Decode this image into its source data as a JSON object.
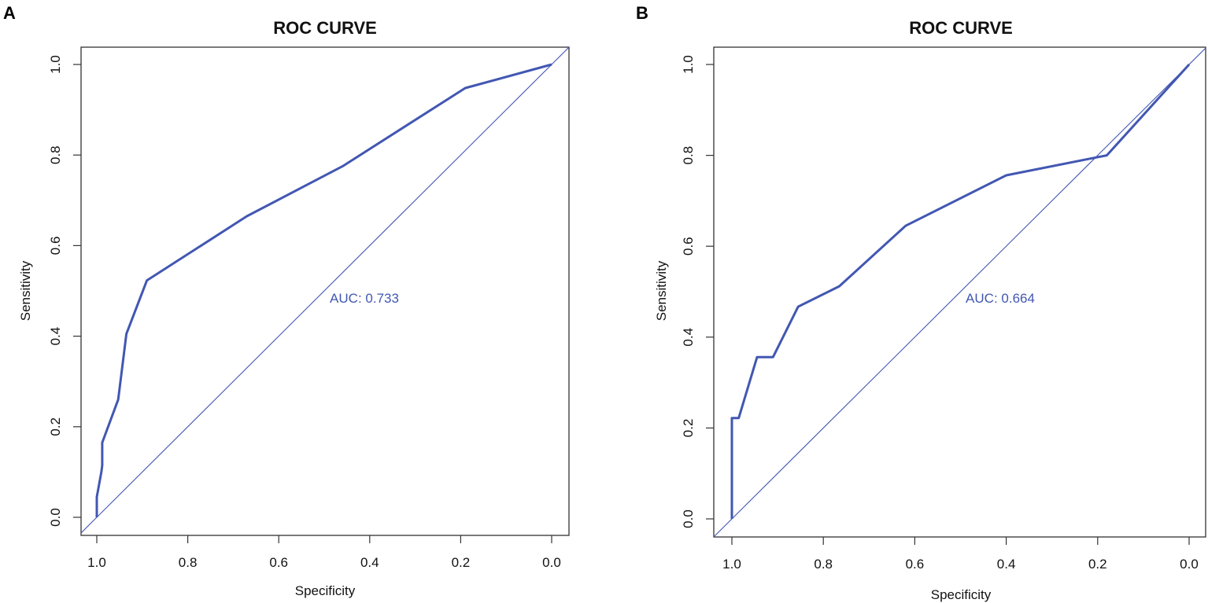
{
  "colors": {
    "curve": "#4257B2",
    "diagonal": "#4257B2",
    "axis": "#333333"
  },
  "chart_data": [
    {
      "panel_label": "A",
      "type": "line",
      "title": "ROC CURVE",
      "xlabel": "Specificity",
      "ylabel": "Sensitivity",
      "xlim": [
        1.0,
        0.0
      ],
      "ylim": [
        0.0,
        1.0
      ],
      "x_ticks": [
        "1.0",
        "0.8",
        "0.6",
        "0.4",
        "0.2",
        "0.0"
      ],
      "y_ticks": [
        "0.0",
        "0.2",
        "0.4",
        "0.6",
        "0.8",
        "1.0"
      ],
      "auc_text": "AUC: 0.733",
      "reference_line": "diagonal",
      "series": [
        {
          "name": "ROC",
          "specificity": [
            1.0,
            1.0,
            0.99,
            0.988,
            0.988,
            0.953,
            0.935,
            0.89,
            0.67,
            0.46,
            0.19,
            0.0
          ],
          "sensitivity": [
            0.0,
            0.045,
            0.1,
            0.115,
            0.165,
            0.26,
            0.405,
            0.523,
            0.665,
            0.775,
            0.948,
            1.0
          ]
        }
      ]
    },
    {
      "panel_label": "B",
      "type": "line",
      "title": "ROC CURVE",
      "xlabel": "Specificity",
      "ylabel": "Sensitivity",
      "xlim": [
        1.0,
        0.0
      ],
      "ylim": [
        0.0,
        1.0
      ],
      "x_ticks": [
        "1.0",
        "0.8",
        "0.6",
        "0.4",
        "0.2",
        "0.0"
      ],
      "y_ticks": [
        "0.0",
        "0.2",
        "0.4",
        "0.6",
        "0.8",
        "1.0"
      ],
      "auc_text": "AUC: 0.664",
      "reference_line": "diagonal",
      "series": [
        {
          "name": "ROC",
          "specificity": [
            1.0,
            1.0,
            0.985,
            0.945,
            0.91,
            0.855,
            0.765,
            0.62,
            0.4,
            0.18,
            0.0
          ],
          "sensitivity": [
            0.0,
            0.222,
            0.222,
            0.356,
            0.356,
            0.467,
            0.512,
            0.645,
            0.756,
            0.8,
            1.0
          ]
        }
      ]
    }
  ]
}
